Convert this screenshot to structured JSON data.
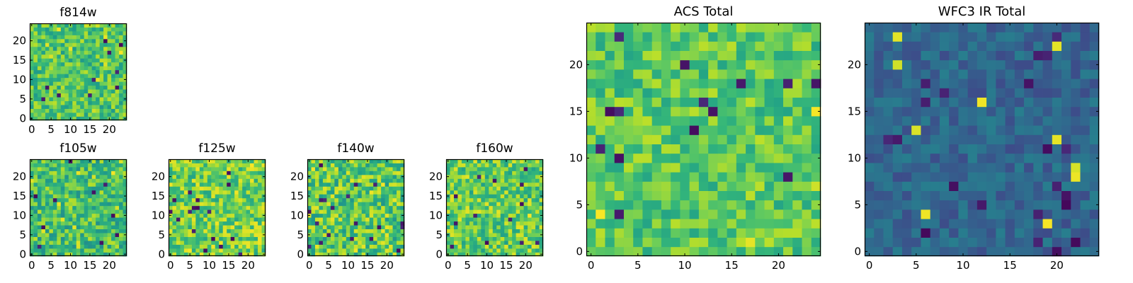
{
  "chart_data": [
    {
      "type": "heatmap",
      "title": "f814w",
      "xticks": [
        "0",
        "5",
        "10",
        "15",
        "20"
      ],
      "yticks": [
        "0",
        "5",
        "10",
        "15",
        "20"
      ],
      "xlim": [
        0,
        25
      ],
      "ylim": [
        0,
        25
      ],
      "grid": false,
      "cmap": "viridis",
      "typical_level": 0.72,
      "spread": 0.18
    },
    {
      "type": "heatmap",
      "title": "f105w",
      "xticks": [
        "0",
        "5",
        "10",
        "15",
        "20"
      ],
      "yticks": [
        "0",
        "5",
        "10",
        "15",
        "20"
      ],
      "xlim": [
        0,
        25
      ],
      "ylim": [
        0,
        25
      ],
      "grid": false,
      "cmap": "viridis",
      "typical_level": 0.7,
      "spread": 0.2
    },
    {
      "type": "heatmap",
      "title": "f125w",
      "xticks": [
        "0",
        "5",
        "10",
        "15",
        "20"
      ],
      "yticks": [
        "0",
        "5",
        "10",
        "15",
        "20"
      ],
      "xlim": [
        0,
        25
      ],
      "ylim": [
        0,
        25
      ],
      "grid": false,
      "cmap": "viridis",
      "typical_level": 0.78,
      "spread": 0.2
    },
    {
      "type": "heatmap",
      "title": "f140w",
      "xticks": [
        "0",
        "5",
        "10",
        "15",
        "20"
      ],
      "yticks": [
        "0",
        "5",
        "10",
        "15",
        "20"
      ],
      "xlim": [
        0,
        25
      ],
      "ylim": [
        0,
        25
      ],
      "grid": false,
      "cmap": "viridis",
      "typical_level": 0.74,
      "spread": 0.22
    },
    {
      "type": "heatmap",
      "title": "f160w",
      "xticks": [
        "0",
        "5",
        "10",
        "15",
        "20"
      ],
      "yticks": [
        "0",
        "5",
        "10",
        "15",
        "20"
      ],
      "xlim": [
        0,
        25
      ],
      "ylim": [
        0,
        25
      ],
      "grid": false,
      "cmap": "viridis",
      "typical_level": 0.76,
      "spread": 0.2
    },
    {
      "type": "heatmap",
      "title": "ACS Total",
      "xticks": [
        "0",
        "5",
        "10",
        "15",
        "20"
      ],
      "yticks": [
        "0",
        "5",
        "10",
        "15",
        "20"
      ],
      "xlim": [
        0,
        25
      ],
      "ylim": [
        0,
        25
      ],
      "grid": false,
      "cmap": "viridis",
      "typical_level": 0.74,
      "spread": 0.16
    },
    {
      "type": "heatmap",
      "title": "WFC3 IR Total",
      "xticks": [
        "0",
        "5",
        "10",
        "15",
        "20"
      ],
      "yticks": [
        "0",
        "5",
        "10",
        "15",
        "20"
      ],
      "xlim": [
        0,
        25
      ],
      "ylim": [
        0,
        25
      ],
      "grid": false,
      "cmap": "viridis",
      "typical_level": 0.33,
      "spread": 0.1
    }
  ]
}
